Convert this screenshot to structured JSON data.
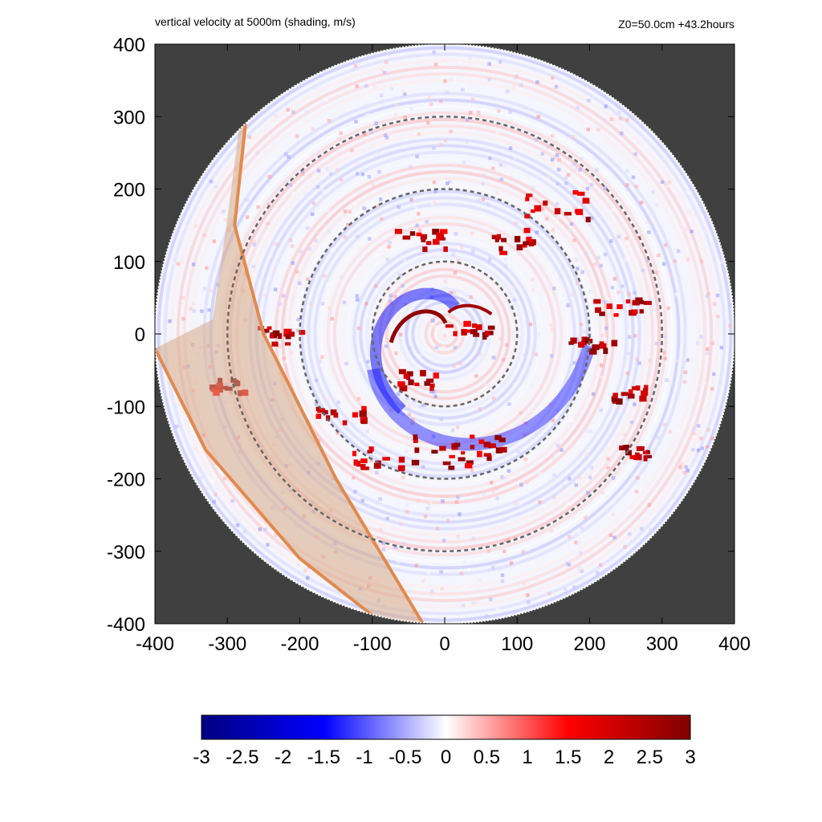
{
  "header": {
    "left_title": "vertical velocity at 5000m (shading, m/s)",
    "right_title": "Z0=50.0cm  +43.2hours"
  },
  "colors": {
    "outside_mask": "#404040",
    "axis": "#000000",
    "dashed_circles": "#666666",
    "band_fill": "#d7a987",
    "band_edge": "#e08a4e",
    "cmap_min": "#000080",
    "cmap_low": "#0000ff",
    "cmap_mid": "#ffffff",
    "cmap_high": "#ff0000",
    "cmap_max": "#800000"
  },
  "chart_data": {
    "type": "heatmap",
    "title": "vertical velocity at 5000m (shading, m/s)",
    "annotation": "Z0=50.0cm  +43.2hours",
    "xlim": [
      -400,
      400
    ],
    "ylim": [
      -400,
      400
    ],
    "x_ticks": [
      -400,
      -300,
      -200,
      -100,
      0,
      100,
      200,
      300,
      400
    ],
    "y_ticks": [
      -400,
      -300,
      -200,
      -100,
      0,
      100,
      200,
      300,
      400
    ],
    "x_tick_labels": [
      "-400",
      "-300",
      "-200",
      "-100",
      "0",
      "100",
      "200",
      "300",
      "400"
    ],
    "y_tick_labels": [
      "400",
      "300",
      "200",
      "100",
      "0",
      "-100",
      "-200",
      "-300",
      "-400"
    ],
    "domain_radius": 400,
    "dashed_circle_radii": [
      100,
      200,
      300
    ],
    "band": {
      "west_edge": [
        [
          -283,
          290
        ],
        [
          -300,
          160
        ],
        [
          -320,
          20
        ],
        [
          -400,
          -20
        ]
      ],
      "east_edge": [
        [
          -275,
          290
        ],
        [
          -290,
          150
        ],
        [
          -250,
          0
        ],
        [
          -150,
          -200
        ],
        [
          -30,
          -400
        ]
      ],
      "south_edge": [
        [
          -400,
          -20
        ],
        [
          -330,
          -160
        ],
        [
          -200,
          -310
        ],
        [
          -85,
          -400
        ]
      ]
    },
    "colorbar": {
      "min": -3,
      "max": 3,
      "ticks": [
        -3,
        -2.5,
        -2,
        -1.5,
        -1,
        -0.5,
        0,
        0.5,
        1,
        1.5,
        2,
        2.5,
        3
      ],
      "tick_labels": [
        "-3",
        "-2.5",
        "-2",
        "-1.5",
        "-1",
        "-0.5",
        "0",
        "0.5",
        "1",
        "1.5",
        "2",
        "2.5",
        "3"
      ]
    }
  }
}
